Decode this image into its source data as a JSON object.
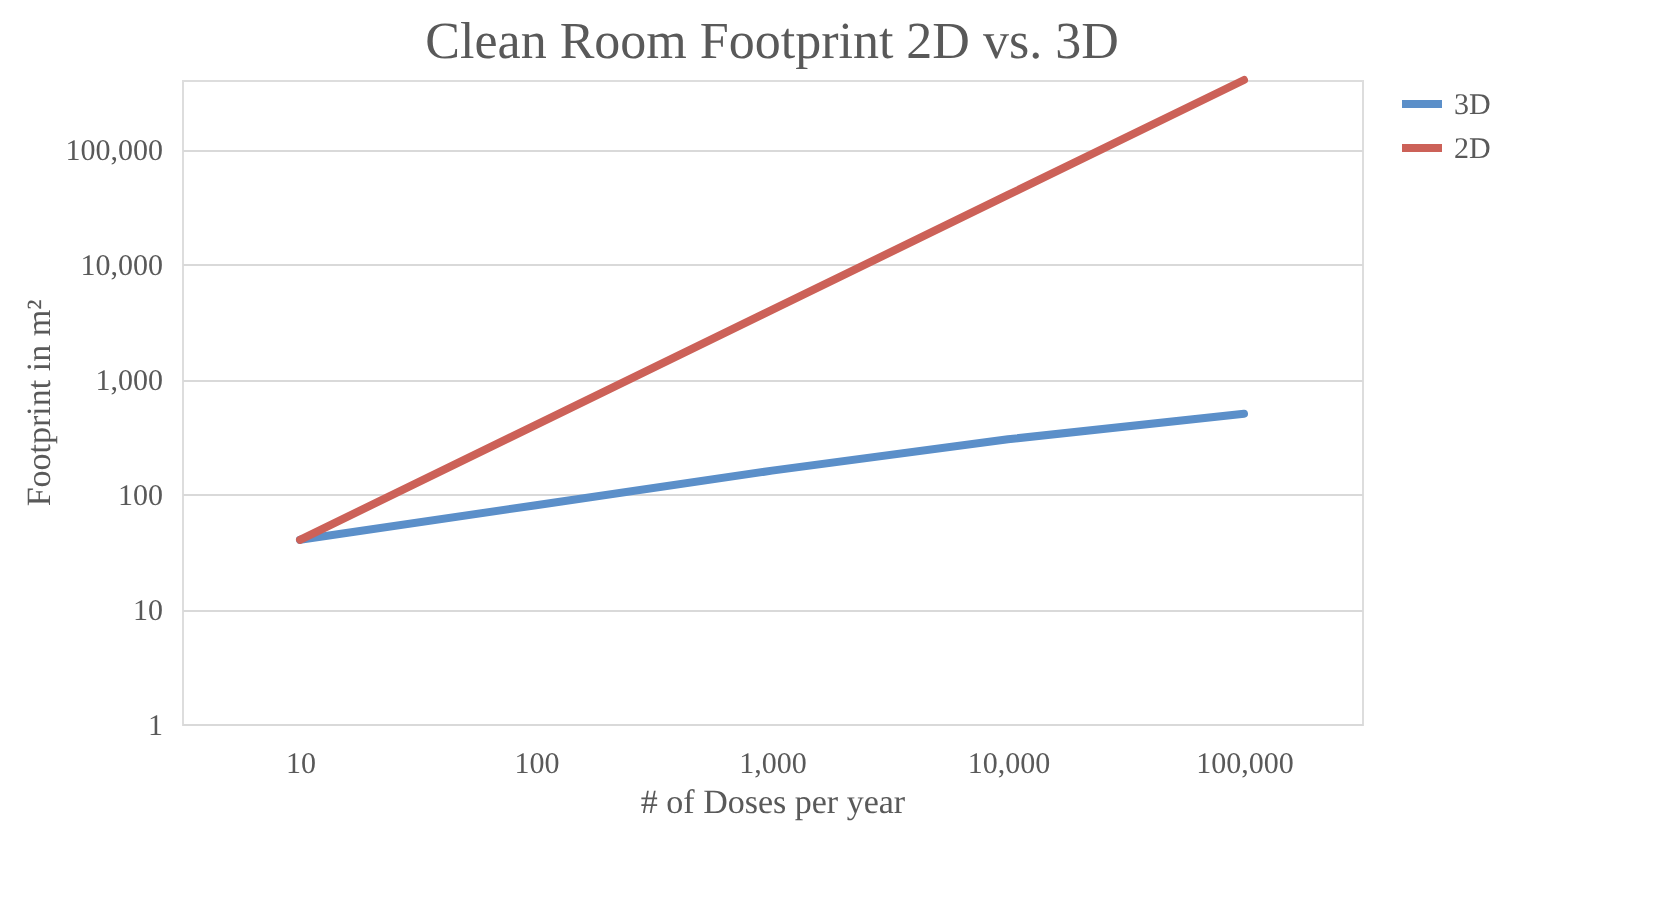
{
  "chart_data": {
    "type": "line",
    "title": "Clean Room Footprint 2D vs. 3D",
    "xlabel": "# of Doses per year",
    "ylabel": "Footprint in m²",
    "categories": [
      "10",
      "100",
      "1,000",
      "10,000",
      "100,000"
    ],
    "series": [
      {
        "name": "3D",
        "color": "#5b8fc9",
        "values": [
          40,
          80,
          160,
          300,
          500
        ]
      },
      {
        "name": "2D",
        "color": "#cc6158",
        "values": [
          40,
          400,
          4000,
          40000,
          400000
        ]
      }
    ],
    "log": "y",
    "ylim": [
      1,
      400000
    ],
    "yticks": [
      {
        "value": 1,
        "label": "1"
      },
      {
        "value": 10,
        "label": "10"
      },
      {
        "value": 100,
        "label": "100"
      },
      {
        "value": 1000,
        "label": "1,000"
      },
      {
        "value": 10000,
        "label": "10,000"
      },
      {
        "value": 100000,
        "label": "100,000"
      }
    ],
    "grid": "y",
    "legend": "right",
    "marker": "none",
    "line_style": "solid"
  }
}
